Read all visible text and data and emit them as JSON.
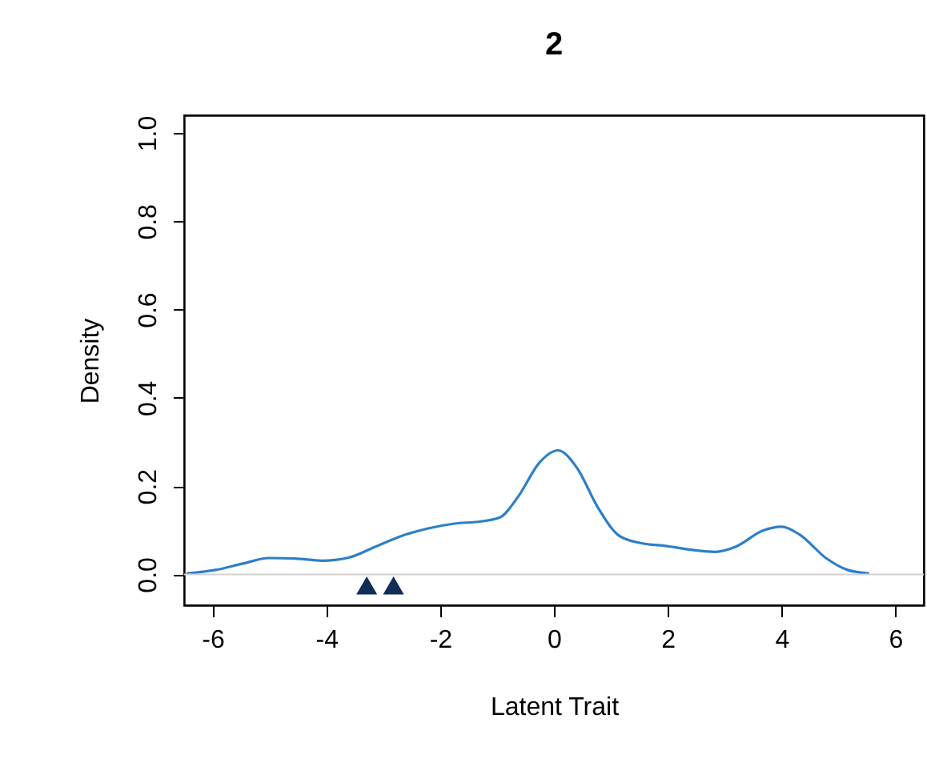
{
  "chart_data": {
    "type": "line",
    "title": "2",
    "xlabel": "Latent Trait",
    "ylabel": "Density",
    "xlim": [
      -6.5,
      6.5
    ],
    "ylim": [
      -0.07,
      1.04
    ],
    "xticks": [
      -6,
      -4,
      -2,
      0,
      2,
      4,
      6
    ],
    "yticks": [
      {
        "value": 0,
        "label": "0.0"
      },
      0.2,
      0.4,
      0.6,
      0.8,
      {
        "value": 1,
        "label": "1.0"
      }
    ],
    "grid": false,
    "ref_lines": [
      {
        "axis": "y",
        "value": 0,
        "color": "#d3d3d3"
      }
    ],
    "series": [
      {
        "color": "#2d7fc9",
        "x": [
          -6.46,
          -5.95,
          -5.48,
          -5.01,
          -4.55,
          -4.08,
          -3.61,
          -3.15,
          -2.68,
          -2.21,
          -1.75,
          -1.28,
          -0.95,
          -0.63,
          -0.25,
          0.07,
          0.4,
          0.77,
          1.15,
          1.52,
          1.99,
          2.46,
          2.83,
          3.2,
          3.67,
          4.0,
          4.32,
          4.79,
          5.16,
          5.54
        ],
        "values": [
          0.002,
          0.01,
          0.024,
          0.037,
          0.036,
          0.031,
          0.038,
          0.062,
          0.087,
          0.104,
          0.115,
          0.12,
          0.129,
          0.176,
          0.254,
          0.281,
          0.242,
          0.152,
          0.087,
          0.071,
          0.064,
          0.055,
          0.051,
          0.063,
          0.099,
          0.108,
          0.09,
          0.036,
          0.01,
          0.002
        ]
      },
      {
        "type": "scatter",
        "color": "#0f2d57",
        "marker": "triangle",
        "x": [
          -3.29,
          -2.82
        ],
        "values": [
          -0.025,
          -0.025
        ]
      }
    ]
  }
}
